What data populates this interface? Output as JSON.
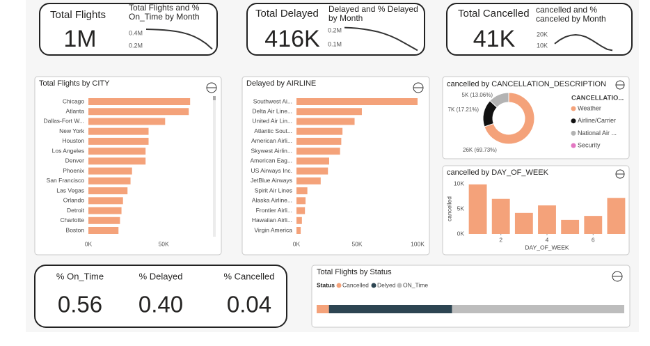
{
  "cards": [
    {
      "title": "Total Flights",
      "value": "1M"
    },
    {
      "title": "Total Delayed",
      "value": "416K"
    },
    {
      "title": "Total Cancelled",
      "value": "41K"
    }
  ],
  "percent_cards": [
    {
      "title": "% On_Time",
      "value": "0.56"
    },
    {
      "title": "% Delayed",
      "value": "0.40"
    },
    {
      "title": "% Cancelled",
      "value": "0.04"
    }
  ],
  "chart_data": [
    {
      "type": "line",
      "title": "Total Flights and % On_Time by Month",
      "color": "#333333",
      "categories": [
        null,
        null,
        null,
        null,
        null,
        null,
        null,
        null,
        null,
        null,
        null,
        null
      ],
      "values": [
        466000,
        464000,
        460000,
        454000,
        445000,
        432000,
        413000,
        387000,
        350000,
        300000,
        235000,
        150000
      ],
      "ylim": [
        100000,
        500000
      ],
      "yticks": [
        {
          "value": 400000,
          "label": "0.4M"
        },
        {
          "value": 200000,
          "label": "0.2M"
        }
      ]
    },
    {
      "type": "line",
      "title": "Delayed and % Delayed by Month",
      "color": "#333333",
      "categories": [
        null,
        null,
        null,
        null,
        null,
        null,
        null,
        null,
        null,
        null,
        null,
        null
      ],
      "values": [
        222000,
        220000,
        216000,
        210000,
        202000,
        192000,
        178000,
        160000,
        138000,
        112000,
        85000,
        58000
      ],
      "ylim": [
        50000,
        250000
      ],
      "yticks": [
        {
          "value": 200000,
          "label": "0.2M"
        },
        {
          "value": 100000,
          "label": "0.1M"
        }
      ]
    },
    {
      "type": "line",
      "title": "cancelled and % canceled by Month",
      "color": "#333333",
      "categories": [
        null,
        null,
        null,
        null,
        null,
        null,
        null,
        null,
        null,
        null,
        null,
        null
      ],
      "values": [
        12000,
        15500,
        18000,
        19500,
        20000,
        19500,
        18000,
        15500,
        12500,
        9500,
        7000,
        6000
      ],
      "ylim": [
        5000,
        25000
      ],
      "yticks": [
        {
          "value": 20000,
          "label": "20K"
        },
        {
          "value": 10000,
          "label": "10K"
        }
      ]
    },
    {
      "type": "hbar",
      "title": "Total Flights by CITY",
      "color": "#f4a27a",
      "categories": [
        "Chicago",
        "Atlanta",
        "Dallas-Fort W...",
        "New York",
        "Houston",
        "Los Angeles",
        "Denver",
        "Phoenix",
        "San Francisco",
        "Las Vegas",
        "Orlando",
        "Detroit",
        "Charlotte",
        "Boston"
      ],
      "values": [
        67600,
        66700,
        51000,
        40000,
        40000,
        38000,
        38000,
        29000,
        28000,
        26000,
        23000,
        22000,
        21000,
        20000
      ],
      "xlim": [
        0,
        80000
      ],
      "xticks": [
        {
          "value": 0,
          "label": "0K"
        },
        {
          "value": 50000,
          "label": "50K"
        }
      ]
    },
    {
      "type": "hbar",
      "title": "Delayed by AIRLINE",
      "color": "#f4a27a",
      "categories": [
        "Southwest Ai...",
        "Delta Air Line...",
        "United Air Lin...",
        "Atlantic Sout...",
        "American Airli...",
        "Skywest Airlin...",
        "American Eag...",
        "US Airways Inc.",
        "JetBlue Airways",
        "Spirit Air Lines",
        "Alaska Airline...",
        "Frontier Airli...",
        "Hawaiian Airli...",
        "Virgin America"
      ],
      "values": [
        100000,
        54000,
        48000,
        38000,
        37000,
        36000,
        27000,
        26000,
        20000,
        9000,
        7500,
        7000,
        4500,
        3500
      ],
      "xlim": [
        0,
        100000
      ],
      "xticks": [
        {
          "value": 0,
          "label": "0K"
        },
        {
          "value": 50000,
          "label": "50K"
        },
        {
          "value": 100000,
          "label": "100K"
        }
      ]
    },
    {
      "type": "donut",
      "title": "cancelled by CANCELLATION_DESCRIPTION",
      "legend_title": "CANCELLATIO...",
      "categories": [
        "Weather",
        "Airline/Carrier",
        "National Air ...",
        "Security"
      ],
      "values": [
        69.73,
        17.21,
        13.06,
        0
      ],
      "value_labels": [
        "26K (69.73%)",
        "7K (17.21%)",
        "5K (13.06%)",
        null
      ],
      "colors": [
        "#f4a27a",
        "#111111",
        "#b3b3b3",
        "#e377c2"
      ]
    },
    {
      "type": "bar",
      "title": "cancelled by DAY_OF_WEEK",
      "color": "#f4a27a",
      "x": [
        1,
        2,
        3,
        4,
        5,
        6,
        7
      ],
      "values": [
        9900,
        7000,
        4200,
        5700,
        2800,
        3600,
        7200
      ],
      "xlabel": "DAY_OF_WEEK",
      "ylabel": "cancelled",
      "xlim": [
        0.5,
        7.5
      ],
      "xticks": [
        2,
        4,
        6
      ],
      "ylim": [
        0,
        10300
      ],
      "yticks": [
        {
          "value": 0,
          "label": "0K"
        },
        {
          "value": 5000,
          "label": "5K"
        },
        {
          "value": 10000,
          "label": "10K"
        }
      ]
    },
    {
      "type": "stacked",
      "title": "Total Flights by Status",
      "legend_title": "Status",
      "xlim": [
        0,
        100
      ],
      "series": [
        {
          "name": "Cancelled",
          "color": "#f4a27a",
          "values": [
            4
          ]
        },
        {
          "name": "Delyed",
          "color": "#2d4552",
          "values": [
            40
          ]
        },
        {
          "name": "ON_Time",
          "color": "#bdbdbd",
          "values": [
            56
          ]
        }
      ]
    }
  ]
}
